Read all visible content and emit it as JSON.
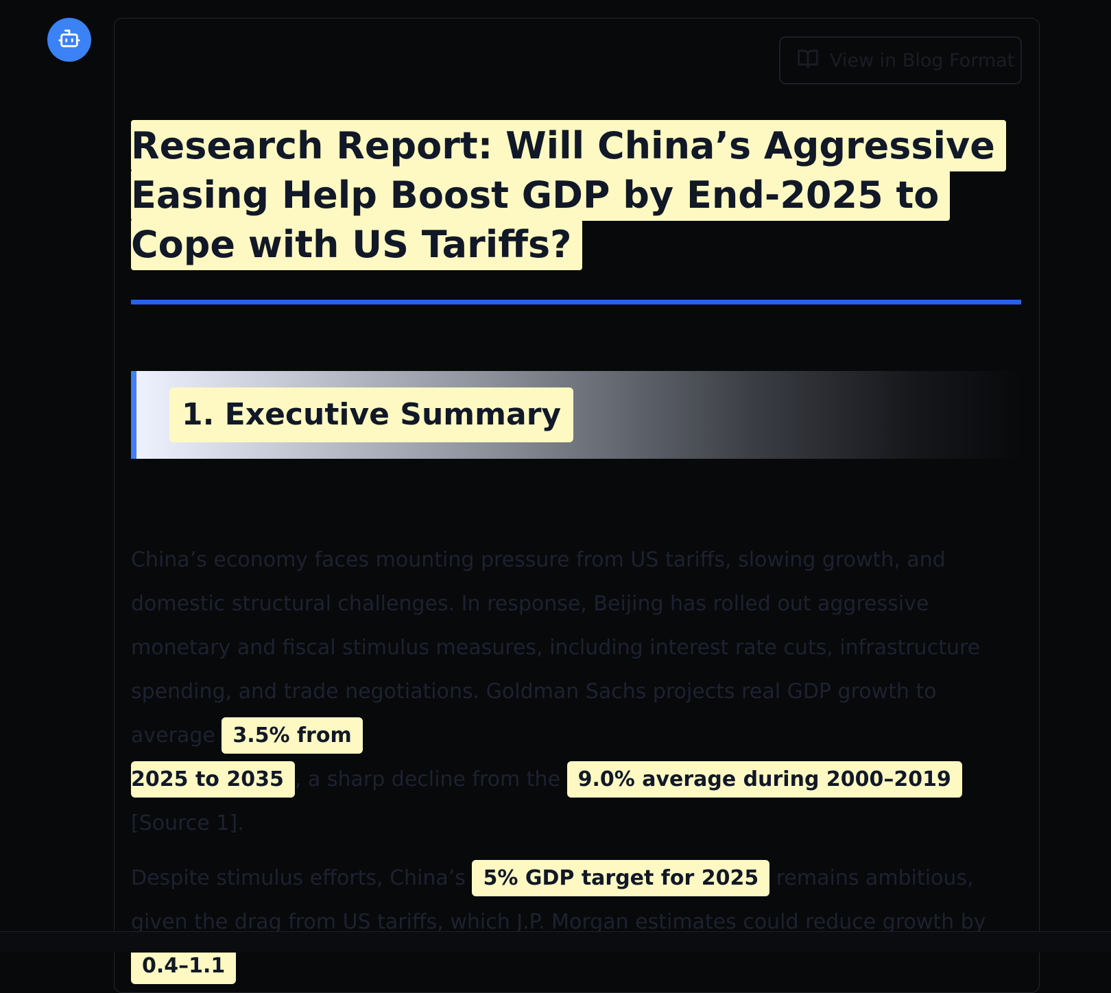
{
  "sidebar": {
    "avatar_icon": "robot-icon"
  },
  "toolbar": {
    "blog_button_label": "View in Blog Format",
    "blog_button_icon": "book-open-icon"
  },
  "report": {
    "title": "Research Report: Will China’s Aggressive Easing Help Boost GDP by End-2025 to Cope with US Tariffs?",
    "section_1_title": "1. Executive Summary",
    "p1": {
      "t1": "China’s economy faces mounting pressure from US tariffs, slowing growth, and domestic structural challenges. In response, Beijing has rolled out aggressive monetary and fiscal stimulus measures, including interest rate cuts, infrastructure spending, and trade negotiations. Goldman Sachs projects real GDP growth to average ",
      "h1a": "3.5% from",
      "h1b": "2025 to 2035",
      "t2": ", a sharp decline from the ",
      "h2": "9.0% average during 2000–2019",
      "t3": " [Source 1]."
    },
    "p2": {
      "t1": "Despite stimulus efforts, China’s ",
      "h1": "5% GDP target for 2025",
      "t2": " remains ambitious, given the drag from US tariffs, which J.P. Morgan estimates could reduce growth by ",
      "h2": "0.4–1.1"
    }
  },
  "colors": {
    "accent": "#3b82f6",
    "highlight": "#fef9c3",
    "rule": "#2563eb",
    "background": "#08090b"
  }
}
